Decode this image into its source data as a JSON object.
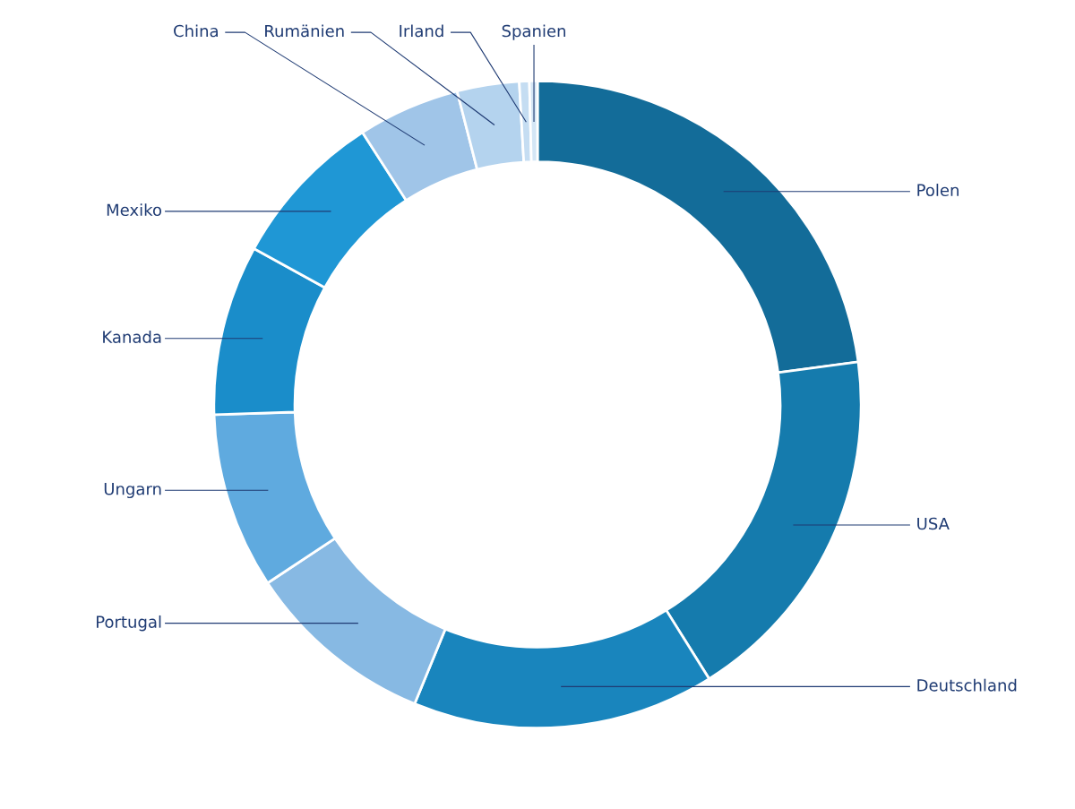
{
  "chart_data": {
    "type": "donut",
    "categories": [
      "Polen",
      "USA",
      "Deutschland",
      "Portugal",
      "Ungarn",
      "Kanada",
      "Mexiko",
      "China",
      "Rumänien",
      "Irland",
      "Spanien"
    ],
    "values": [
      22.9,
      18.2,
      15.1,
      9.5,
      8.8,
      8.5,
      7.9,
      5.1,
      3.1,
      0.5,
      0.4
    ],
    "colors": [
      "#136c99",
      "#157bad",
      "#1985bd",
      "#87b9e3",
      "#5faadf",
      "#1a8dca",
      "#1f97d5",
      "#a0c5e8",
      "#b4d3ee",
      "#c5ddf2",
      "#d4e6f5"
    ],
    "legend": false
  }
}
